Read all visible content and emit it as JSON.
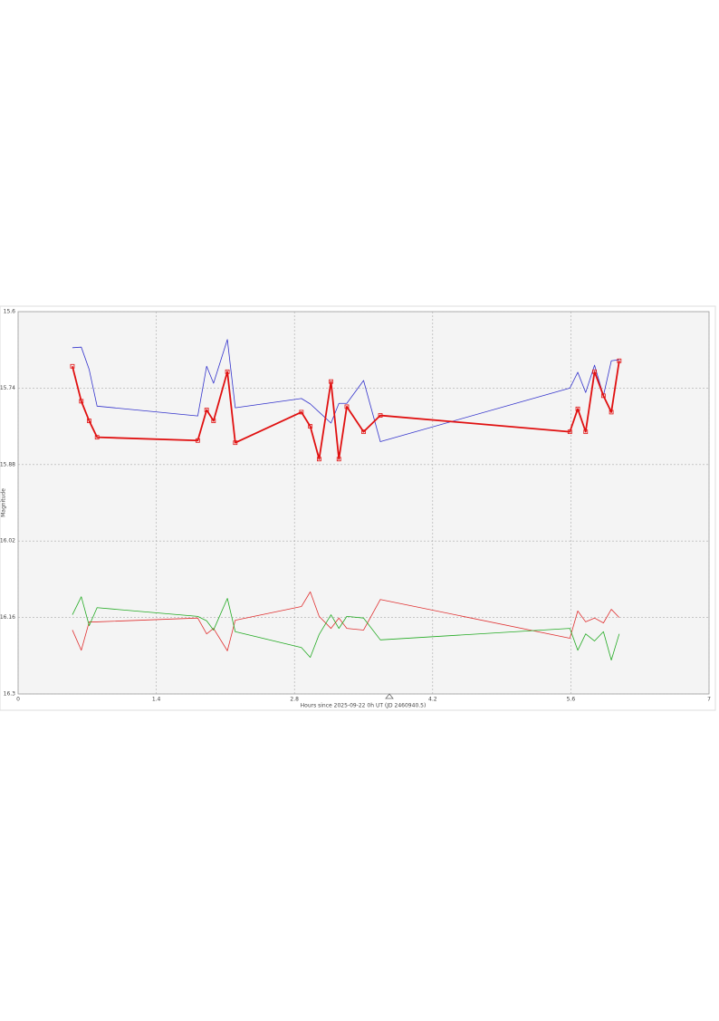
{
  "chart_data": {
    "type": "line",
    "x_label": "Hours since 2025-09-22 0h UT (JD 2460940.5)",
    "y_label": "Magnitude",
    "xlim": [
      0,
      7
    ],
    "xticks": [
      0,
      1.4,
      2.8,
      4.2,
      5.6,
      7
    ],
    "ylim": [
      15.6,
      16.3
    ],
    "yticks": [
      15.6,
      15.74,
      15.88,
      16.02,
      16.16,
      16.3
    ],
    "y_inverted": true,
    "grid": true,
    "x": [
      0.55,
      0.64,
      0.72,
      0.8,
      1.82,
      1.91,
      1.98,
      2.12,
      2.2,
      2.87,
      2.96,
      3.05,
      3.17,
      3.25,
      3.33,
      3.5,
      3.67,
      5.59,
      5.67,
      5.75,
      5.84,
      5.93,
      6.01,
      6.09
    ],
    "series": [
      {
        "color": "#3333cc",
        "line_width": 0.8,
        "markers": false,
        "values": [
          15.666,
          15.665,
          15.706,
          15.773,
          15.791,
          15.7,
          15.731,
          15.651,
          15.776,
          15.759,
          15.769,
          15.784,
          15.804,
          15.768,
          15.768,
          15.726,
          15.838,
          15.74,
          15.711,
          15.748,
          15.698,
          15.754,
          15.69,
          15.688
        ]
      },
      {
        "color": "#e01010",
        "line_width": 1.8,
        "markers": true,
        "values": [
          15.7,
          15.764,
          15.8,
          15.83,
          15.836,
          15.78,
          15.8,
          15.71,
          15.84,
          15.784,
          15.81,
          15.87,
          15.728,
          15.87,
          15.774,
          15.82,
          15.79,
          15.82,
          15.778,
          15.82,
          15.71,
          15.754,
          15.784,
          15.69
        ]
      },
      {
        "color": "#e03030",
        "line_width": 0.8,
        "markers": false,
        "values": [
          16.183,
          16.22,
          16.168,
          16.168,
          16.161,
          16.19,
          16.18,
          16.221,
          16.165,
          16.14,
          16.113,
          16.158,
          16.18,
          16.161,
          16.18,
          16.183,
          16.127,
          16.198,
          16.148,
          16.168,
          16.161,
          16.17,
          16.145,
          16.16
        ]
      },
      {
        "color": "#22aa22",
        "line_width": 0.8,
        "markers": false,
        "values": [
          16.155,
          16.122,
          16.175,
          16.142,
          16.158,
          16.166,
          16.183,
          16.125,
          16.186,
          16.215,
          16.233,
          16.191,
          16.155,
          16.18,
          16.158,
          16.161,
          16.201,
          16.18,
          16.22,
          16.19,
          16.203,
          16.186,
          16.238,
          16.19
        ]
      }
    ]
  }
}
